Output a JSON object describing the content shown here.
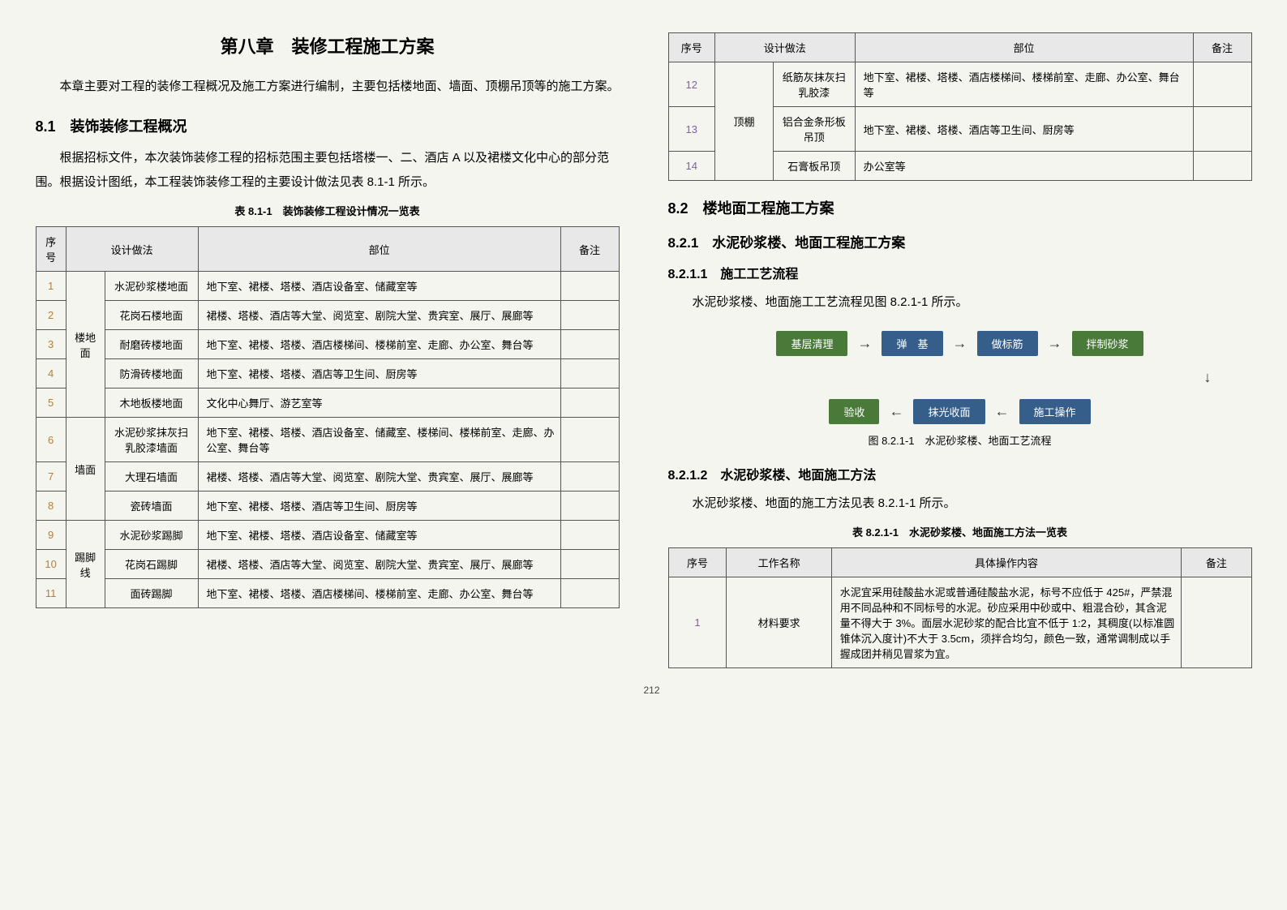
{
  "chapter_title": "第八章　装修工程施工方案",
  "intro_p1": "本章主要对工程的装修工程概况及施工方案进行编制，主要包括楼地面、墙面、顶棚吊顶等的施工方案。",
  "sec_8_1": "8.1　装饰装修工程概况",
  "p_8_1": "根据招标文件，本次装饰装修工程的招标范围主要包括塔楼一、二、酒店 A 以及裙楼文化中心的部分范围。根据设计图纸，本工程装饰装修工程的主要设计做法见表 8.1-1 所示。",
  "table_8_1_1_caption": "表 8.1-1　装饰装修工程设计情况一览表",
  "table_8_1_1": {
    "headers": [
      "序号",
      "设计做法",
      "部位",
      "备注"
    ],
    "groups": [
      {
        "span": 5,
        "group": "楼地面",
        "rows": [
          {
            "idx": "1",
            "col2": "水泥砂浆楼地面",
            "col3": "地下室、裙楼、塔楼、酒店设备室、储藏室等"
          },
          {
            "idx": "2",
            "col2": "花岗石楼地面",
            "col3": "裙楼、塔楼、酒店等大堂、阅览室、剧院大堂、贵宾室、展厅、展廊等"
          },
          {
            "idx": "3",
            "col2": "耐磨砖楼地面",
            "col3": "地下室、裙楼、塔楼、酒店楼梯间、楼梯前室、走廊、办公室、舞台等"
          },
          {
            "idx": "4",
            "col2": "防滑砖楼地面",
            "col3": "地下室、裙楼、塔楼、酒店等卫生间、厨房等"
          },
          {
            "idx": "5",
            "col2": "木地板楼地面",
            "col3": "文化中心舞厅、游艺室等"
          }
        ]
      },
      {
        "span": 3,
        "group": "墙面",
        "rows": [
          {
            "idx": "6",
            "col2": "水泥砂浆抹灰扫乳胶漆墙面",
            "col3": "地下室、裙楼、塔楼、酒店设备室、储藏室、楼梯间、楼梯前室、走廊、办公室、舞台等"
          },
          {
            "idx": "7",
            "col2": "大理石墙面",
            "col3": "裙楼、塔楼、酒店等大堂、阅览室、剧院大堂、贵宾室、展厅、展廊等"
          },
          {
            "idx": "8",
            "col2": "瓷砖墙面",
            "col3": "地下室、裙楼、塔楼、酒店等卫生间、厨房等"
          }
        ]
      },
      {
        "span": 3,
        "group": "踢脚线",
        "rows": [
          {
            "idx": "9",
            "col2": "水泥砂浆踢脚",
            "col3": "地下室、裙楼、塔楼、酒店设备室、储藏室等"
          },
          {
            "idx": "10",
            "col2": "花岗石踢脚",
            "col3": "裙楼、塔楼、酒店等大堂、阅览室、剧院大堂、贵宾室、展厅、展廊等"
          },
          {
            "idx": "11",
            "col2": "面砖踢脚",
            "col3": "地下室、裙楼、塔楼、酒店楼梯间、楼梯前室、走廊、办公室、舞台等"
          }
        ]
      }
    ]
  },
  "table_8_1_1_right": {
    "headers": [
      "序号",
      "设计做法",
      "部位",
      "备注"
    ],
    "group": "顶棚",
    "rows": [
      {
        "idx": "12",
        "col2": "纸筋灰抹灰扫乳胶漆",
        "col3": "地下室、裙楼、塔楼、酒店楼梯间、楼梯前室、走廊、办公室、舞台等"
      },
      {
        "idx": "13",
        "col2": "铝合金条形板吊顶",
        "col3": "地下室、裙楼、塔楼、酒店等卫生间、厨房等"
      },
      {
        "idx": "14",
        "col2": "石膏板吊顶",
        "col3": "办公室等"
      }
    ]
  },
  "sec_8_2": "8.2　楼地面工程施工方案",
  "sec_8_2_1": "8.2.1　水泥砂浆楼、地面工程施工方案",
  "sec_8_2_1_1": "8.2.1.1　施工工艺流程",
  "p_8_2_1_1": "水泥砂浆楼、地面施工工艺流程见图 8.2.1-1 所示。",
  "flowchart": {
    "row1": [
      {
        "label": "基层清理",
        "bg": "#4a7a3a"
      },
      {
        "label": "弹　基",
        "bg": "#355e8a"
      },
      {
        "label": "做标筋",
        "bg": "#355e8a"
      },
      {
        "label": "拌制砂浆",
        "bg": "#4a7a3a"
      }
    ],
    "row2": [
      {
        "label": "验收",
        "bg": "#4a7a3a"
      },
      {
        "label": "抹光收面",
        "bg": "#355e8a"
      },
      {
        "label": "施工操作",
        "bg": "#355e8a"
      }
    ],
    "arrow_right": "→",
    "arrow_left": "←",
    "arrow_down": "↓"
  },
  "fig_8_2_1_1_caption": "图 8.2.1-1　水泥砂浆楼、地面工艺流程",
  "sec_8_2_1_2": "8.2.1.2　水泥砂浆楼、地面施工方法",
  "p_8_2_1_2": "水泥砂浆楼、地面的施工方法见表 8.2.1-1 所示。",
  "table_8_2_1_1_caption": "表 8.2.1-1　水泥砂浆楼、地面施工方法一览表",
  "table_8_2_1_1": {
    "headers": [
      "序号",
      "工作名称",
      "具体操作内容",
      "备注"
    ],
    "rows": [
      {
        "idx": "1",
        "name": "材料要求",
        "content": "水泥宜采用硅酸盐水泥或普通硅酸盐水泥，标号不应低于 425#，严禁混用不同品种和不同标号的水泥。砂应采用中砂或中、粗混合砂，其含泥量不得大于 3%。面层水泥砂浆的配合比宜不低于 1:2，其稠度(以标准圆锥体沉入度计)不大于 3.5cm，须拌合均匀，颜色一致，通常调制成以手握成团并稍见冒浆为宜。"
      }
    ]
  },
  "page_number": "212",
  "colors": {
    "page_bg": "#f5f5f0",
    "table_header_bg": "#e8e8e8",
    "table_border": "#555555",
    "idx_brown": "#b08040",
    "idx_purple": "#8060a0",
    "flow_green": "#4a7a3a",
    "flow_blue": "#355e8a"
  }
}
